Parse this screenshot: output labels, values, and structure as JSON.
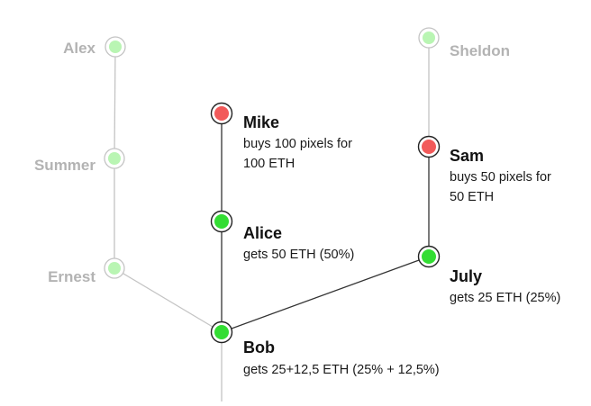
{
  "colors": {
    "faded_fill": "#b9f5b3",
    "green_fill": "#33dd33",
    "red_fill": "#f25a5a",
    "line_strong": "#333333",
    "line_faded": "#c4c4c4",
    "text_faded": "#b3b3b3"
  },
  "nodes": {
    "alex": {
      "name": "Alex",
      "state": "faded"
    },
    "summer": {
      "name": "Summer",
      "state": "faded"
    },
    "ernest": {
      "name": "Ernest",
      "state": "faded"
    },
    "sheldon": {
      "name": "Sheldon",
      "state": "faded"
    },
    "mike": {
      "name": "Mike",
      "state": "buyer",
      "desc": [
        "buys 100 pixels for",
        "100 ETH"
      ]
    },
    "alice": {
      "name": "Alice",
      "state": "receiver",
      "desc": [
        "gets 50 ETH (50%)"
      ]
    },
    "sam": {
      "name": "Sam",
      "state": "buyer",
      "desc": [
        "buys 50 pixels for",
        "50 ETH"
      ]
    },
    "july": {
      "name": "July",
      "state": "receiver",
      "desc": [
        "gets 25 ETH (25%)"
      ]
    },
    "bob": {
      "name": "Bob",
      "state": "receiver",
      "desc": [
        "gets 25+12,5 ETH (25% + 12,5%)"
      ]
    }
  }
}
